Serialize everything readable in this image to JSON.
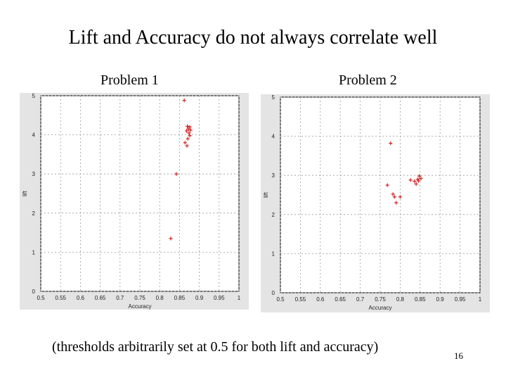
{
  "slide": {
    "title": "Lift and Accuracy do not always correlate well",
    "footnote": "(thresholds arbitrarily set at 0.5 for both lift and accuracy)",
    "page_number": "16"
  },
  "chart_data": [
    {
      "type": "scatter",
      "title": "Problem 1",
      "xlabel": "Accuracy",
      "ylabel": "lift",
      "xlim": [
        0.5,
        1.0
      ],
      "ylim": [
        0,
        5
      ],
      "xticks": [
        "0.5",
        "0.55",
        "0.6",
        "0.65",
        "0.7",
        "0.75",
        "0.8",
        "0.85",
        "0.9",
        "0.95",
        "1"
      ],
      "yticks": [
        "0",
        "1",
        "2",
        "3",
        "4",
        "5"
      ],
      "grid": true,
      "marker_color": "#d42020",
      "points": [
        {
          "x": 0.862,
          "y": 4.88
        },
        {
          "x": 0.87,
          "y": 4.22
        },
        {
          "x": 0.876,
          "y": 4.2
        },
        {
          "x": 0.872,
          "y": 4.15
        },
        {
          "x": 0.868,
          "y": 4.1
        },
        {
          "x": 0.878,
          "y": 4.12
        },
        {
          "x": 0.874,
          "y": 4.05
        },
        {
          "x": 0.876,
          "y": 3.98
        },
        {
          "x": 0.871,
          "y": 3.9
        },
        {
          "x": 0.864,
          "y": 3.8
        },
        {
          "x": 0.869,
          "y": 3.72
        },
        {
          "x": 0.842,
          "y": 3.0
        },
        {
          "x": 0.828,
          "y": 1.35
        }
      ]
    },
    {
      "type": "scatter",
      "title": "Problem 2",
      "xlabel": "Accuracy",
      "ylabel": "lift",
      "xlim": [
        0.5,
        1.0
      ],
      "ylim": [
        0,
        5
      ],
      "xticks": [
        "0.5",
        "0.55",
        "0.6",
        "0.65",
        "0.7",
        "0.75",
        "0.8",
        "0.85",
        "0.9",
        "0.95",
        "1"
      ],
      "yticks": [
        "0",
        "1",
        "2",
        "3",
        "4",
        "5"
      ],
      "grid": true,
      "marker_color": "#d42020",
      "points": [
        {
          "x": 0.776,
          "y": 3.82
        },
        {
          "x": 0.768,
          "y": 2.75
        },
        {
          "x": 0.782,
          "y": 2.52
        },
        {
          "x": 0.786,
          "y": 2.45
        },
        {
          "x": 0.79,
          "y": 2.3
        },
        {
          "x": 0.8,
          "y": 2.45
        },
        {
          "x": 0.826,
          "y": 2.88
        },
        {
          "x": 0.836,
          "y": 2.85
        },
        {
          "x": 0.84,
          "y": 2.78
        },
        {
          "x": 0.844,
          "y": 2.9
        },
        {
          "x": 0.848,
          "y": 2.98
        },
        {
          "x": 0.846,
          "y": 2.86
        },
        {
          "x": 0.852,
          "y": 2.92
        }
      ]
    }
  ]
}
